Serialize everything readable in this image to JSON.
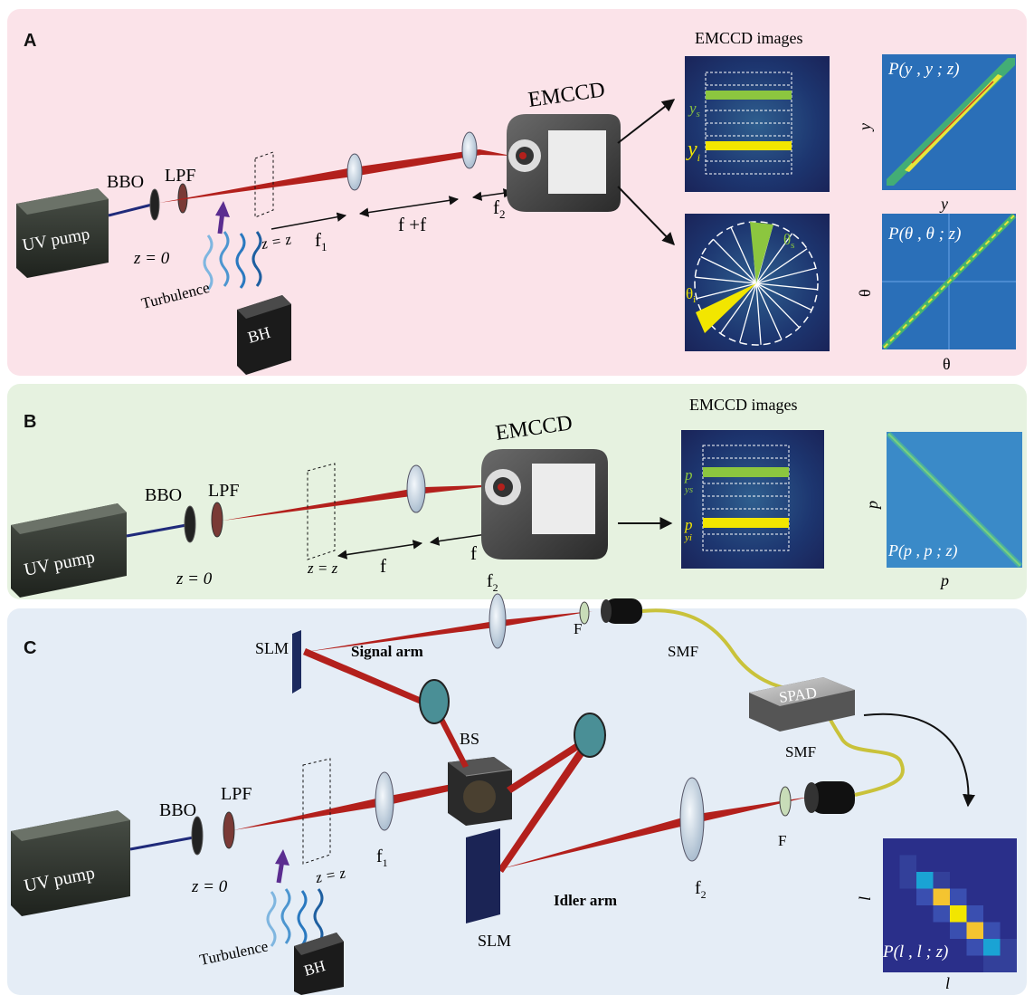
{
  "panels": {
    "a": {
      "label": "A",
      "pump": "UV  pump",
      "bbo": "BBO",
      "lpf": "LPF",
      "z0": "z = 0",
      "zz": "z = z",
      "f1": "f",
      "f1_sub": "1",
      "f1f2": "f +f",
      "f2": "f",
      "f2_sub": "2",
      "turbulence": "Turbulence",
      "bh": "BH",
      "camera": "EMCCD",
      "images_title": "EMCCD images",
      "ys": "y",
      "ys_sub": "s",
      "yi": "y",
      "yi_sub": "i",
      "theta_s": "θ",
      "theta_s_sub": "s",
      "theta_i": "θ",
      "theta_i_sub": "i",
      "plot1_title": "P(y , y ; z)",
      "plot1_xlabel": "y",
      "plot1_ylabel": "y",
      "plot2_title": "P(θ , θ ; z)",
      "plot2_xlabel": "θ",
      "plot2_ylabel": "θ"
    },
    "b": {
      "label": "B",
      "pump": "UV  pump",
      "bbo": "BBO",
      "lpf": "LPF",
      "z0": "z = 0",
      "zz": "z = z",
      "f_left": "f",
      "f_right": "f",
      "camera": "EMCCD",
      "images_title": "EMCCD images",
      "pys": "p",
      "pys_sub": "ys",
      "pyi": "p",
      "pyi_sub": "yi",
      "plot_title": "P(p  , p ; z)",
      "plot_xlabel": "p",
      "plot_ylabel": "p"
    },
    "c": {
      "label": "C",
      "pump": "UV  pump",
      "bbo": "BBO",
      "lpf": "LPF",
      "z0": "z = 0",
      "zz": "z = z",
      "turbulence": "Turbulence",
      "bh": "BH",
      "signal_arm": "Signal arm",
      "idler_arm": "Idler arm",
      "slm_top": "SLM",
      "slm_bottom": "SLM",
      "bs": "BS",
      "f1": "f",
      "f2_top": "f",
      "f2_bottom": "f",
      "filter_top": "F",
      "filter_bottom": "F",
      "smf_top": "SMF",
      "smf_bottom": "SMF",
      "spad": "SPAD",
      "plot_title": "P(l , l ; z)",
      "plot_xlabel": "l",
      "plot_ylabel": "l"
    }
  },
  "colors": {
    "panel_a_bg": "#fbe3e9",
    "panel_b_bg": "#e6f2e0",
    "panel_c_bg": "#e5edf6",
    "beam_red": "#b3201c",
    "pump_blue": "#1f2a7a",
    "signal_green": "#8cc63f",
    "idler_yellow": "#f2e600",
    "image_dark": "#1b2a5e",
    "fiber": "#c9c23a"
  },
  "matrix_c": [
    [
      0.15,
      0.15,
      0.15,
      0.15,
      0.15,
      0.15,
      0.15,
      0.15
    ],
    [
      0.15,
      0.2,
      0.15,
      0.15,
      0.15,
      0.15,
      0.15,
      0.15
    ],
    [
      0.15,
      0.2,
      0.55,
      0.2,
      0.15,
      0.15,
      0.15,
      0.15
    ],
    [
      0.15,
      0.15,
      0.25,
      0.8,
      0.25,
      0.15,
      0.15,
      0.15
    ],
    [
      0.15,
      0.15,
      0.15,
      0.25,
      0.95,
      0.25,
      0.15,
      0.15
    ],
    [
      0.15,
      0.15,
      0.15,
      0.15,
      0.3,
      0.85,
      0.3,
      0.15
    ],
    [
      0.15,
      0.15,
      0.15,
      0.15,
      0.15,
      0.3,
      0.55,
      0.2
    ],
    [
      0.15,
      0.15,
      0.15,
      0.15,
      0.15,
      0.15,
      0.2,
      0.2
    ]
  ]
}
